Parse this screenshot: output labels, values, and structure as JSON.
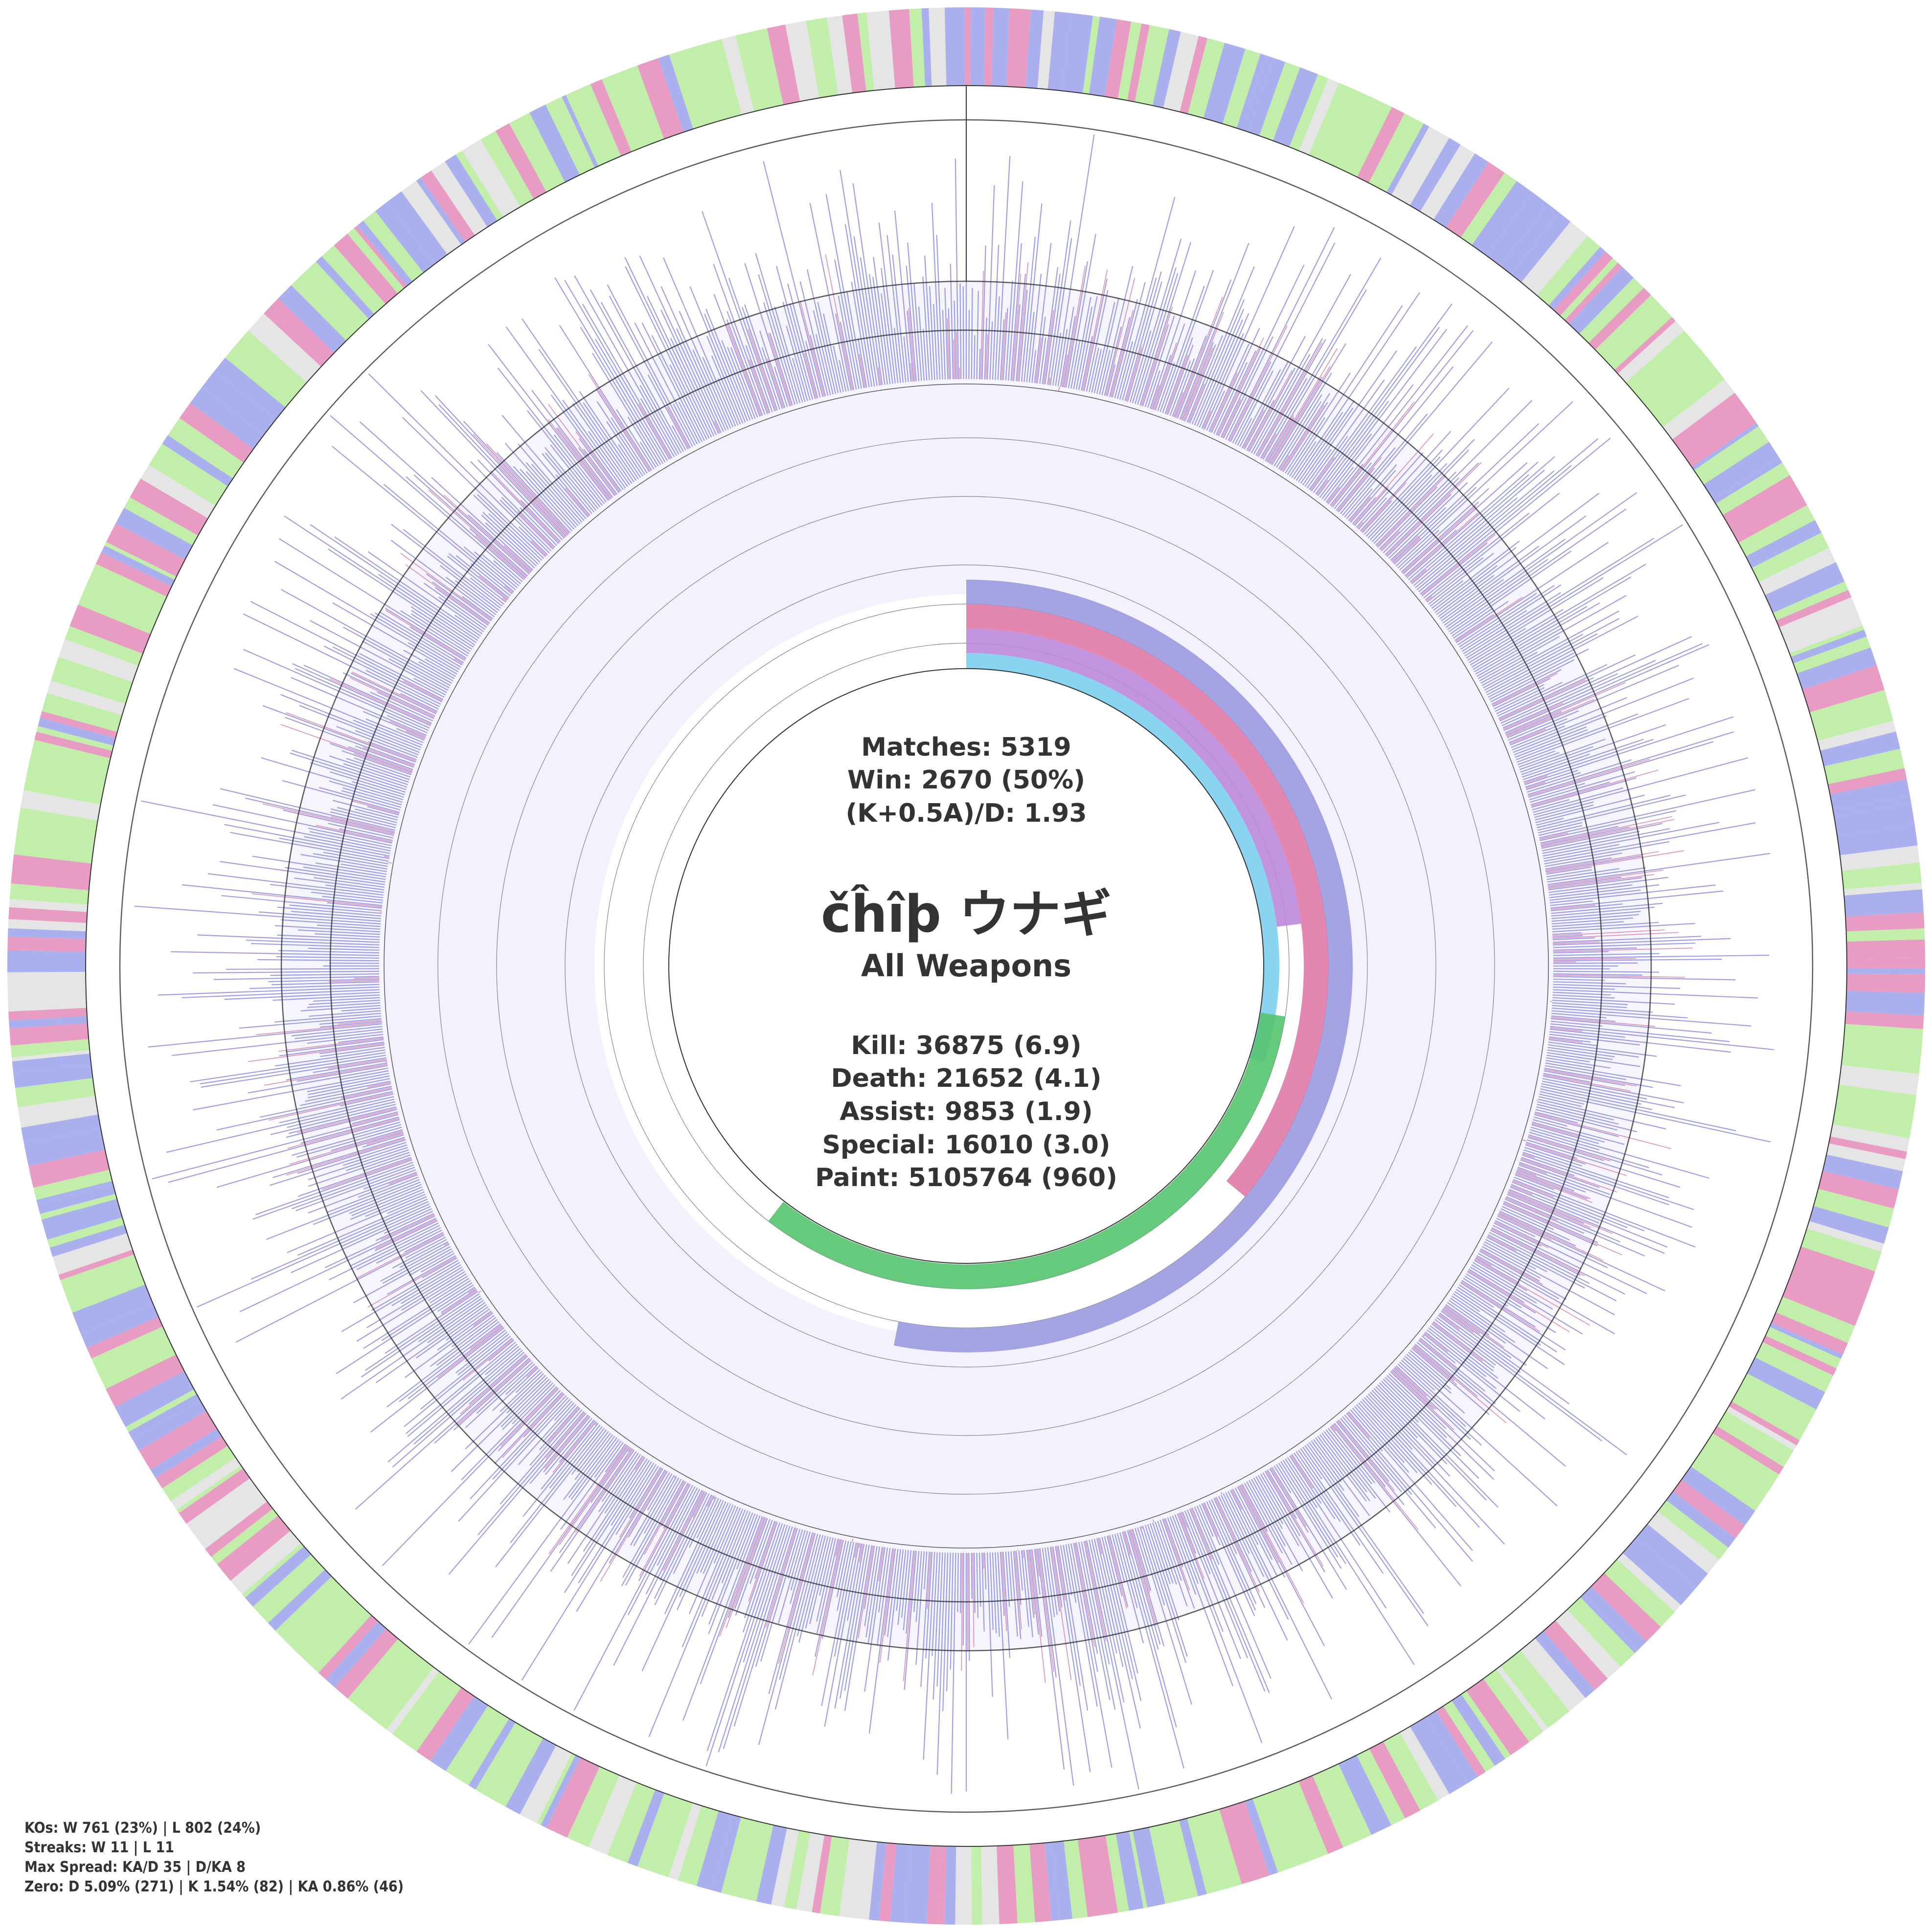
{
  "chart_data": {
    "type": "radial",
    "center": {
      "player": "čĥîþ ウナギ",
      "weapon": "All Weapons",
      "matches": "Matches: 5319",
      "win": "Win: 2670 (50%)",
      "kad": "(K+0.5A)/D: 1.93",
      "kill": "Kill: 36875 (6.9)",
      "death": "Death: 21652 (4.1)",
      "assist": "Assist: 9853 (1.9)",
      "special": "Special: 16010 (3.0)",
      "paint": "Paint: 5105764 (960)"
    },
    "totals": {
      "matches": 5319,
      "wins": 2670,
      "win_rate": 0.5,
      "kad_ratio": 1.93,
      "kills": 36875,
      "kills_avg": 6.9,
      "deaths": 21652,
      "deaths_avg": 4.1,
      "assists": 9853,
      "assists_avg": 1.9,
      "specials": 16010,
      "specials_avg": 3.0,
      "paint": 5105764,
      "paint_avg": 960
    },
    "inner_rings": [
      {
        "name": "kill",
        "color": "#9a9ae0",
        "fraction": 0.53
      },
      {
        "name": "death",
        "color": "#e07aa8",
        "fraction": 0.36
      },
      {
        "name": "special",
        "color": "#bb88dd",
        "fraction": 0.23
      },
      {
        "name": "paint",
        "color": "#7ccfee",
        "fraction": 0.3
      },
      {
        "name": "win",
        "color": "#55c46e",
        "fraction": 0.33
      }
    ],
    "series_colors": {
      "kill_bar": "#8080e0",
      "death_bar": "#d45a92",
      "win": "#b6ec9a",
      "loss_kill": "#9aa2ea",
      "loss_death": "#e48ab8",
      "neutral": "#e0e0e0"
    }
  },
  "footer": {
    "kos": "KOs: W 761 (23%) | L 802 (24%)",
    "streaks": "Streaks: W 11 | L 11",
    "spread": "Max Spread: KA/D 35 | D/KA 8",
    "zero": "Zero: D 5.09% (271) | K 1.54% (82) | KA 0.86% (46)"
  }
}
